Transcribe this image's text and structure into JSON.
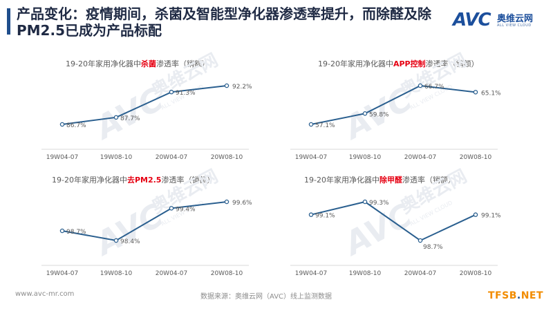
{
  "header": {
    "title": "产品变化：疫情期间，杀菌及智能型净化器渗透率提升，而除醛及除PM2.5已成为产品标配"
  },
  "logo": {
    "text": "AVC",
    "cn": "奥维云网",
    "en": "ALL VIEW CLOUD"
  },
  "footer": {
    "url": "www.avc-mr.com",
    "source": "数据来源：奥维云网（AVC）线上监测数据",
    "badge_prefix": "TFSB",
    "badge_dot": ".",
    "badge_suffix": "NET"
  },
  "colors": {
    "line": "#2a5f8f",
    "highlight": "#e60012",
    "accent": "#1f4e8c"
  },
  "chart_data": [
    {
      "type": "line",
      "title_prefix": "19-20年家用净化器中",
      "title_highlight": "杀菌",
      "title_suffix": "渗透率（销额）",
      "categories": [
        "19W04-07",
        "19W08-10",
        "20W04-07",
        "20W08-10"
      ],
      "series": [
        {
          "values": [
            86.7,
            87.7,
            91.3,
            92.2
          ]
        }
      ],
      "labels": [
        "86.7%",
        "87.7%",
        "91.3%",
        "92.2%"
      ]
    },
    {
      "type": "line",
      "title_prefix": "19-20年家用净化器中",
      "title_highlight": "APP控制",
      "title_suffix": "渗透率（销额）",
      "categories": [
        "19W04-07",
        "19W08-10",
        "20W04-07",
        "20W08-10"
      ],
      "series": [
        {
          "values": [
            57.1,
            59.8,
            66.7,
            65.1
          ]
        }
      ],
      "labels": [
        "57.1%",
        "59.8%",
        "66.7%",
        "65.1%"
      ]
    },
    {
      "type": "line",
      "title_prefix": "19-20年家用净化器中",
      "title_highlight": "去PM2.5",
      "title_suffix": "渗透率（销额）",
      "categories": [
        "19W04-07",
        "19W08-10",
        "20W04-07",
        "20W08-10"
      ],
      "series": [
        {
          "values": [
            98.7,
            98.4,
            99.4,
            99.6
          ]
        }
      ],
      "labels": [
        "98.7%",
        "98.4%",
        "99.4%",
        "99.6%"
      ]
    },
    {
      "type": "line",
      "title_prefix": "19-20年家用净化器中",
      "title_highlight": "除甲醛",
      "title_suffix": "渗透率（销额）",
      "categories": [
        "19W04-07",
        "19W08-10",
        "20W04-07",
        "20W08-10"
      ],
      "series": [
        {
          "values": [
            99.1,
            99.3,
            98.7,
            99.1
          ]
        }
      ],
      "labels": [
        "99.1%",
        "99.3%",
        "98.7%",
        "99.1%"
      ]
    }
  ]
}
